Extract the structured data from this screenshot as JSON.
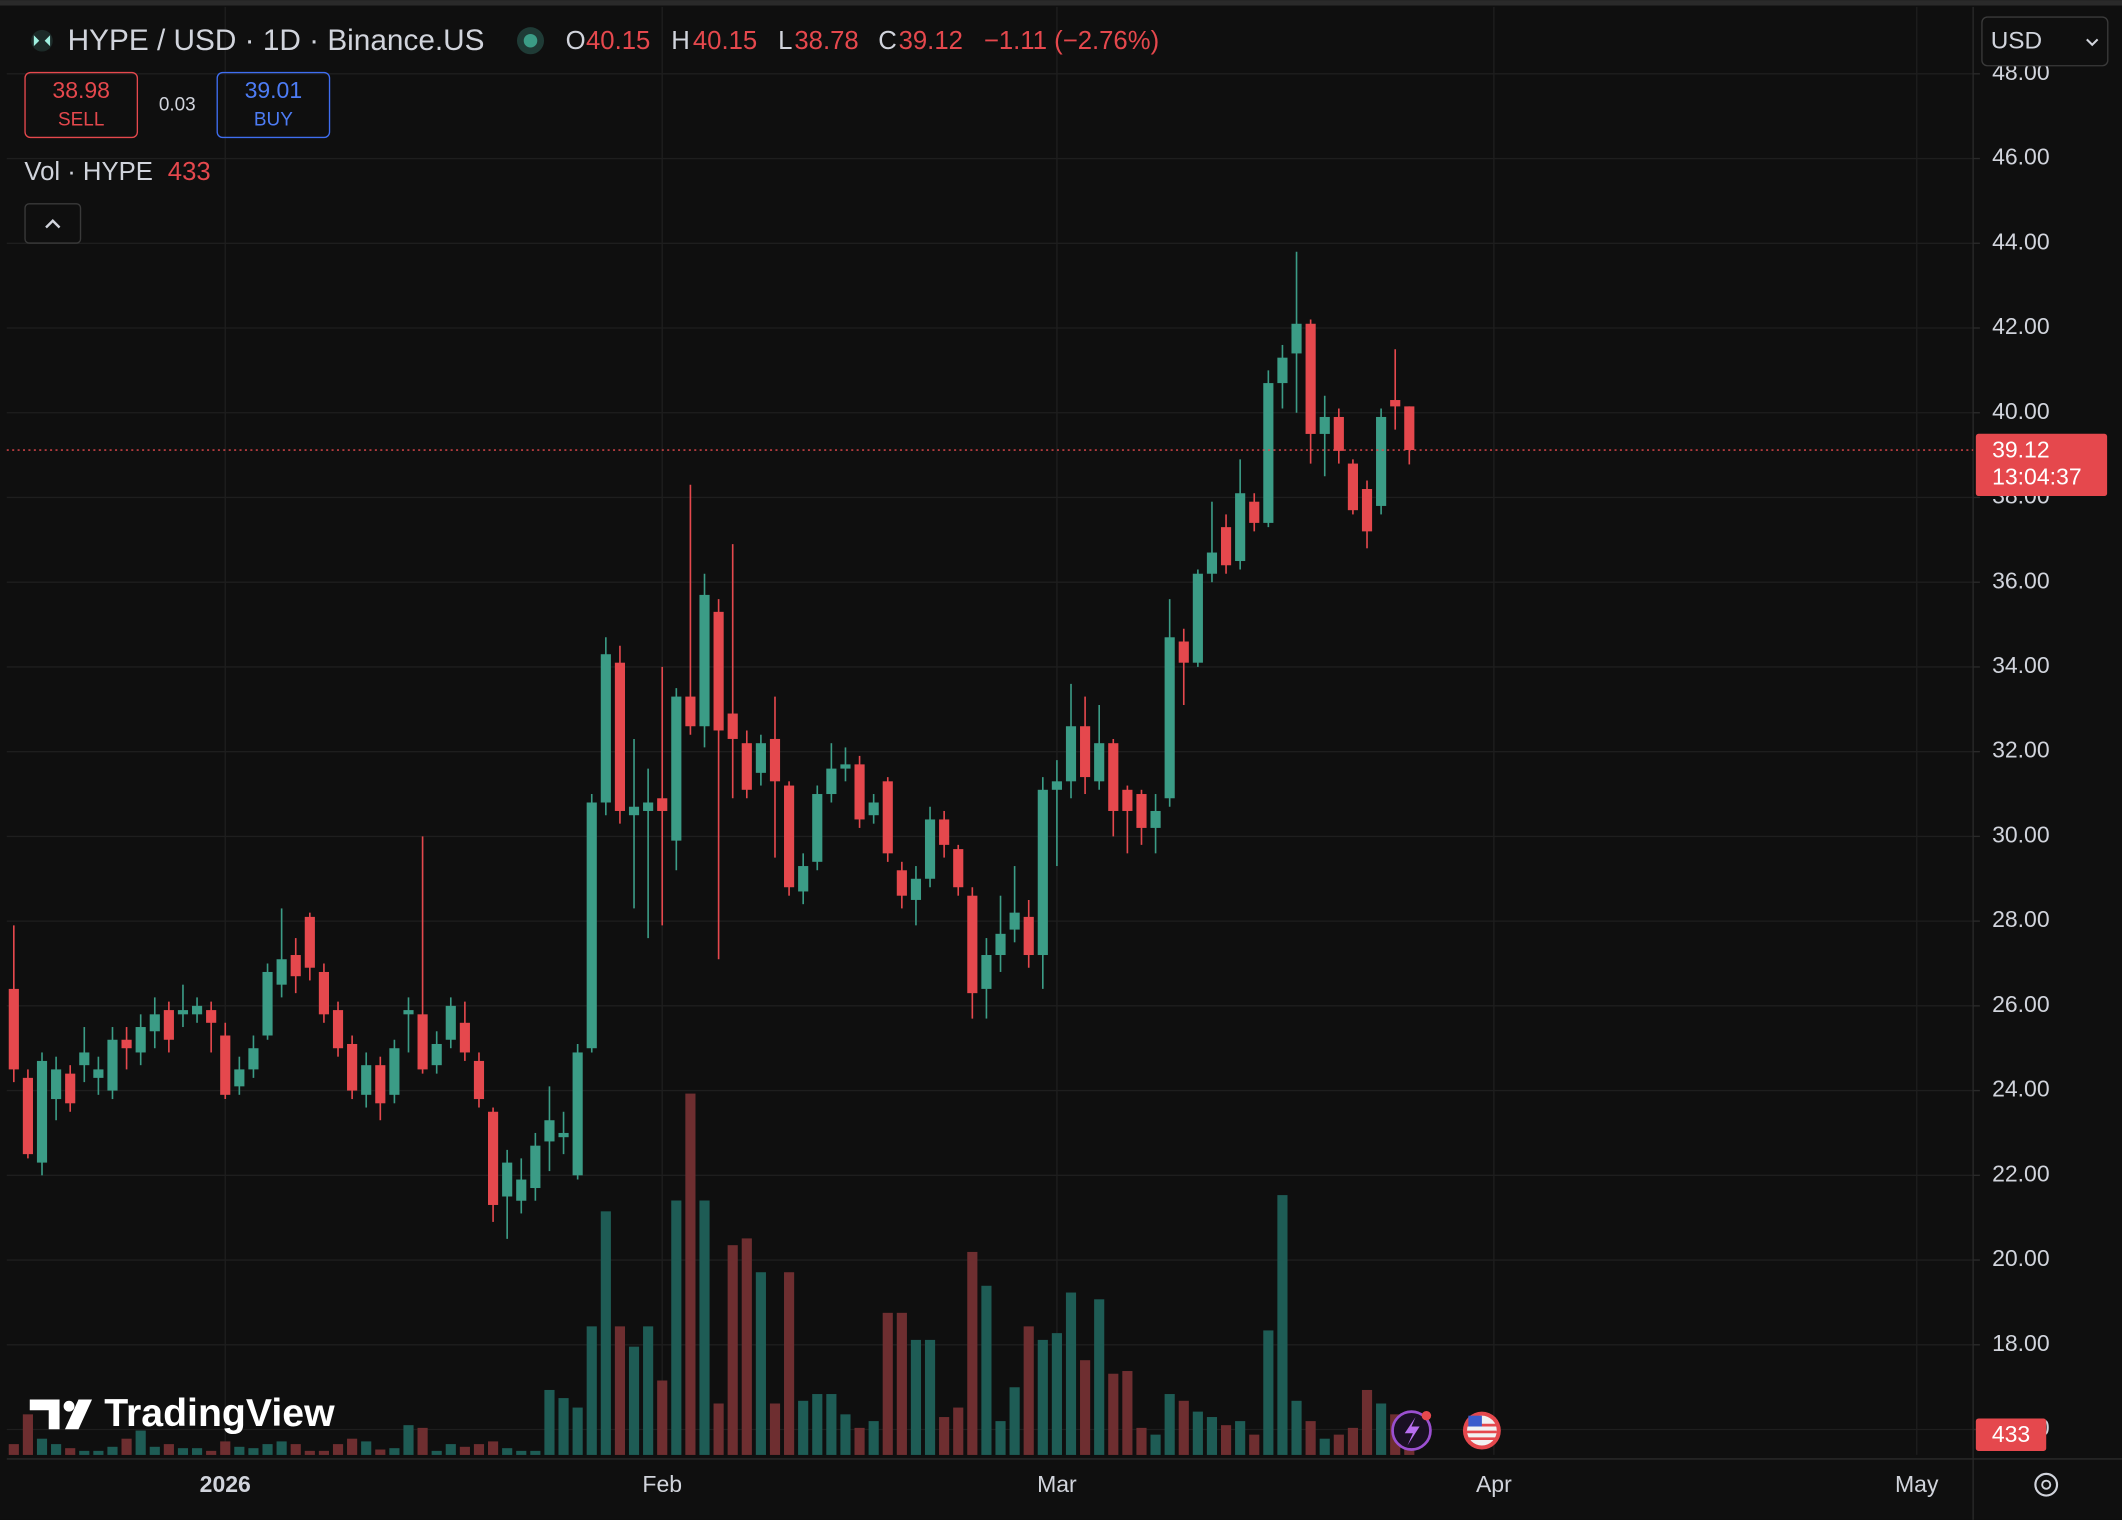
{
  "header": {
    "symbol": "HYPE / USD · 1D · Binance.US",
    "o": "O",
    "h": "H",
    "l": "L",
    "c": "C",
    "change": "−1.11 (−2.76%)"
  },
  "trade": {
    "sell_price": 38.98,
    "sell": "SELL",
    "spread": 0.03,
    "buy_price": 39.01,
    "buy": "BUY"
  },
  "volume_legend": {
    "label": "Vol · HYPE"
  },
  "currency": "USD",
  "price_badge": {
    "countdown": "13:04:37"
  },
  "watermark": "TradingView",
  "chart_data": {
    "type": "candlestick",
    "open": [
      26.4,
      24.3,
      22.3,
      23.8,
      24.4,
      24.6,
      24.3,
      24.0,
      25.2,
      24.9,
      25.4,
      25.9,
      25.8,
      25.8,
      25.9,
      25.3,
      24.1,
      24.5,
      25.3,
      26.5,
      27.2,
      28.1,
      26.8,
      25.9,
      25.1,
      23.9,
      24.6,
      23.9,
      25.8,
      25.8,
      24.6,
      25.2,
      25.6,
      24.7,
      23.5,
      21.5,
      21.4,
      21.7,
      22.8,
      22.9,
      22.0,
      25.0,
      30.8,
      34.1,
      30.5,
      30.6,
      30.9,
      29.9,
      33.3,
      32.6,
      35.3,
      32.9,
      32.2,
      31.5,
      32.3,
      31.2,
      28.7,
      29.4,
      31.0,
      31.6,
      31.7,
      30.5,
      31.3,
      29.2,
      28.5,
      29.0,
      30.4,
      29.7,
      28.6,
      26.4,
      27.2,
      27.8,
      28.1,
      27.2,
      31.1,
      31.3,
      32.6,
      31.3,
      32.2,
      31.1,
      31.0,
      30.2,
      30.9,
      34.6,
      34.1,
      36.2,
      37.3,
      36.5,
      37.9,
      37.4,
      40.7,
      41.4,
      42.1,
      39.5,
      39.9,
      38.8,
      38.2,
      37.8,
      40.3,
      40.15
    ],
    "high": [
      27.9,
      24.5,
      24.9,
      24.8,
      24.6,
      25.5,
      24.8,
      25.5,
      25.5,
      25.8,
      26.2,
      26.1,
      26.5,
      26.2,
      26.1,
      25.6,
      24.8,
      25.3,
      27.0,
      28.3,
      27.6,
      28.2,
      27.0,
      26.1,
      25.3,
      24.9,
      24.8,
      25.2,
      26.2,
      30.0,
      25.4,
      26.2,
      26.1,
      24.9,
      23.6,
      22.6,
      22.4,
      23.0,
      24.1,
      23.5,
      25.1,
      31.0,
      34.7,
      34.5,
      32.3,
      31.6,
      34.0,
      33.5,
      38.3,
      36.2,
      35.6,
      36.9,
      32.5,
      32.4,
      33.3,
      31.3,
      29.6,
      31.2,
      32.2,
      32.1,
      31.9,
      31.0,
      31.4,
      29.4,
      29.3,
      30.7,
      30.6,
      29.8,
      28.8,
      27.6,
      28.6,
      29.3,
      28.5,
      31.4,
      31.8,
      33.6,
      33.3,
      33.1,
      32.3,
      31.2,
      31.1,
      31.0,
      35.6,
      34.9,
      36.3,
      37.9,
      37.6,
      38.9,
      38.1,
      41.0,
      41.6,
      43.8,
      42.2,
      40.4,
      40.1,
      38.9,
      38.4,
      40.1,
      41.5,
      40.15
    ],
    "low": [
      24.2,
      22.4,
      22.0,
      23.3,
      23.5,
      24.2,
      23.9,
      23.8,
      24.5,
      24.6,
      25.0,
      24.9,
      25.5,
      25.6,
      24.9,
      23.8,
      23.9,
      24.3,
      25.2,
      26.2,
      26.3,
      26.6,
      25.6,
      24.8,
      23.8,
      23.6,
      23.3,
      23.7,
      24.9,
      24.4,
      24.4,
      25.0,
      24.7,
      23.6,
      20.9,
      20.5,
      21.1,
      21.4,
      22.1,
      22.5,
      21.9,
      24.9,
      30.5,
      30.3,
      28.3,
      27.6,
      27.9,
      29.2,
      32.4,
      32.1,
      27.1,
      30.9,
      30.9,
      31.2,
      29.5,
      28.6,
      28.4,
      29.2,
      30.8,
      31.3,
      30.2,
      30.3,
      29.4,
      28.3,
      27.9,
      28.8,
      29.5,
      28.6,
      25.7,
      25.7,
      26.8,
      27.5,
      26.9,
      26.4,
      29.3,
      30.9,
      31.0,
      31.1,
      30.0,
      29.6,
      29.8,
      29.6,
      30.7,
      33.1,
      34.0,
      36.0,
      36.2,
      36.3,
      37.2,
      37.3,
      40.1,
      40.0,
      38.8,
      38.5,
      38.8,
      37.6,
      36.8,
      37.6,
      39.6,
      38.78
    ],
    "close": [
      24.5,
      22.5,
      24.7,
      24.5,
      23.7,
      24.9,
      24.5,
      25.2,
      25.0,
      25.5,
      25.8,
      25.2,
      25.9,
      26.0,
      25.6,
      23.9,
      24.5,
      25.0,
      26.8,
      27.1,
      26.7,
      26.9,
      25.8,
      25.0,
      24.0,
      24.6,
      23.7,
      25.0,
      25.9,
      24.5,
      25.1,
      26.0,
      24.9,
      23.8,
      21.3,
      22.3,
      21.9,
      22.7,
      23.3,
      23.0,
      24.9,
      30.8,
      34.3,
      30.6,
      30.7,
      30.8,
      30.6,
      33.3,
      32.6,
      35.7,
      32.5,
      32.3,
      31.1,
      32.2,
      31.3,
      28.8,
      29.3,
      31.0,
      31.6,
      31.7,
      30.4,
      30.8,
      29.6,
      28.6,
      29.0,
      30.4,
      29.8,
      28.8,
      26.3,
      27.2,
      27.7,
      28.2,
      27.2,
      31.1,
      31.3,
      32.6,
      31.4,
      32.2,
      30.6,
      30.6,
      30.2,
      30.6,
      34.7,
      34.1,
      36.2,
      36.7,
      36.4,
      38.1,
      37.4,
      40.7,
      41.3,
      42.1,
      39.5,
      39.9,
      39.1,
      37.7,
      37.2,
      39.9,
      40.15,
      39.12
    ],
    "volume": [
      232,
      870,
      348,
      232,
      145,
      87,
      87,
      174,
      348,
      522,
      174,
      232,
      145,
      145,
      87,
      290,
      174,
      145,
      232,
      290,
      232,
      87,
      87,
      232,
      348,
      290,
      116,
      145,
      638,
      580,
      87,
      232,
      174,
      232,
      290,
      145,
      87,
      87,
      1392,
      1218,
      1015,
      2755,
      5220,
      2755,
      2320,
      2755,
      1595,
      5452,
      7743,
      5452,
      1102,
      4495,
      4640,
      3915,
      1102,
      3915,
      1160,
      1305,
      1305,
      870,
      580,
      725,
      3045,
      3045,
      2465,
      2465,
      812,
      1015,
      4350,
      3625,
      725,
      1450,
      2755,
      2465,
      2610,
      3480,
      2030,
      3335,
      1740,
      1798,
      580,
      435,
      1305,
      1160,
      928,
      812,
      638,
      725,
      435,
      2668,
      5568,
      1160,
      725,
      348,
      435,
      580,
      1392,
      1102,
      870,
      433
    ],
    "up_color": "#3b9c86",
    "down_color": "#e5484d",
    "up_volume_color": "#1e5c55",
    "down_volume_color": "#6e2e30",
    "ylim": [
      15.4,
      49.58
    ],
    "yticks": [
      {
        "value": 16,
        "label": "16.00"
      },
      {
        "value": 18,
        "label": "18.00"
      },
      {
        "value": 20,
        "label": "20.00"
      },
      {
        "value": 22,
        "label": "22.00"
      },
      {
        "value": 24,
        "label": "24.00"
      },
      {
        "value": 26,
        "label": "26.00"
      },
      {
        "value": 28,
        "label": "28.00"
      },
      {
        "value": 30,
        "label": "30.00"
      },
      {
        "value": 32,
        "label": "32.00"
      },
      {
        "value": 34,
        "label": "34.00"
      },
      {
        "value": 36,
        "label": "36.00"
      },
      {
        "value": 38,
        "label": "38.00"
      },
      {
        "value": 40,
        "label": "40.00"
      },
      {
        "value": 42,
        "label": "42.00"
      },
      {
        "value": 44,
        "label": "44.00"
      },
      {
        "value": 46,
        "label": "46.00"
      },
      {
        "value": 48,
        "label": "48.00"
      }
    ],
    "xlim": [
      -0.5,
      139
    ],
    "xticks": [
      {
        "value": 15,
        "label": "2026"
      },
      {
        "value": 46,
        "label": "Feb"
      },
      {
        "value": 74,
        "label": "Mar"
      },
      {
        "value": 105,
        "label": "Apr"
      },
      {
        "value": 135,
        "label": "May"
      }
    ],
    "grid": true
  }
}
